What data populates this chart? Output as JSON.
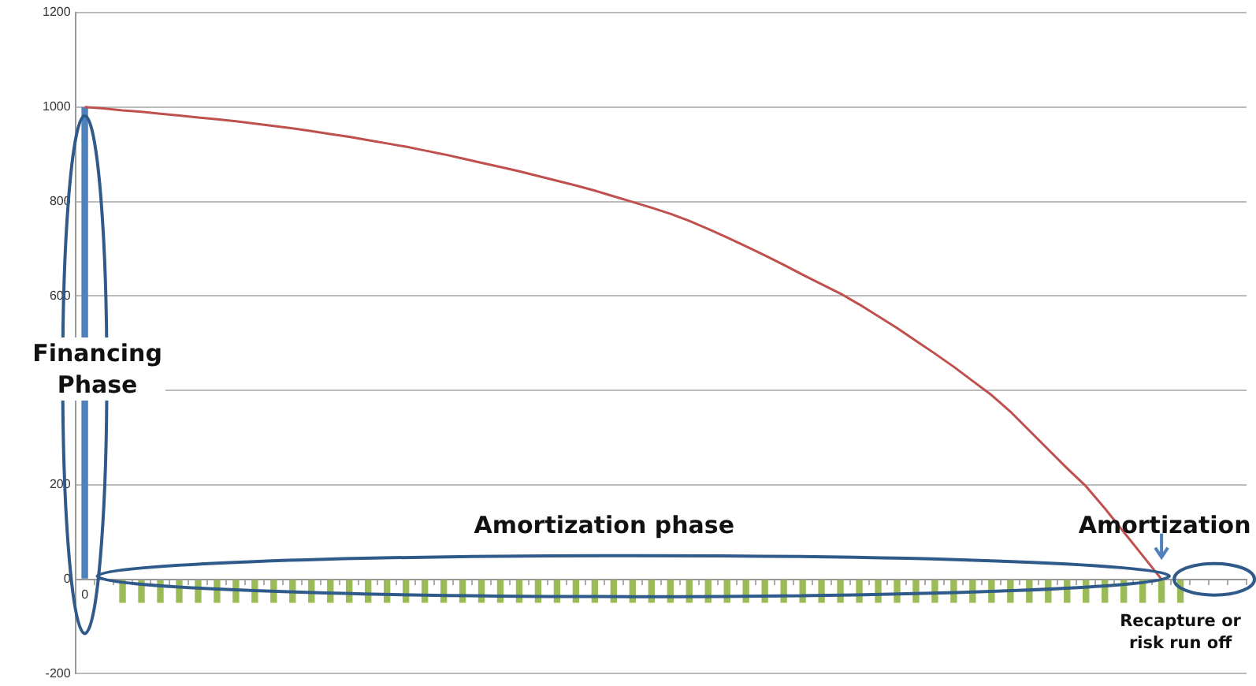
{
  "chart_data": {
    "type": "bar",
    "categories": [
      "0",
      null,
      null,
      null,
      null,
      null,
      null,
      null,
      null,
      null,
      null,
      null,
      null,
      null,
      null,
      null,
      null,
      null,
      null,
      null,
      null,
      null,
      null,
      null,
      null,
      null,
      null,
      null,
      null,
      null,
      null,
      null,
      null,
      null,
      null,
      null,
      null,
      null,
      null,
      null,
      null,
      null,
      null,
      null,
      null,
      null,
      null,
      null,
      null,
      null,
      null,
      null,
      null,
      null,
      null,
      null,
      null,
      null,
      null,
      null,
      null,
      null
    ],
    "series": [
      {
        "color": "#4f81bd",
        "values": [
          1000,
          null,
          null,
          null,
          null,
          null,
          null,
          null,
          null,
          null,
          null,
          null,
          null,
          null,
          null,
          null,
          null,
          null,
          null,
          null,
          null,
          null,
          null,
          null,
          null,
          null,
          null,
          null,
          null,
          null,
          null,
          null,
          null,
          null,
          null,
          null,
          null,
          null,
          null,
          null,
          null,
          null,
          null,
          null,
          null,
          null,
          null,
          null,
          null,
          null,
          null,
          null,
          null,
          null,
          null,
          null,
          null,
          null,
          null,
          null,
          null,
          null
        ]
      },
      {
        "color": "#9bbb59",
        "values": [
          null,
          null,
          -50,
          -50,
          -50,
          -50,
          -50,
          -50,
          -50,
          -50,
          -50,
          -50,
          -50,
          -50,
          -50,
          -50,
          -50,
          -50,
          -50,
          -50,
          -50,
          -50,
          -50,
          -50,
          -50,
          -50,
          -50,
          -50,
          -50,
          -50,
          -50,
          -50,
          -50,
          -50,
          -50,
          -50,
          -50,
          -50,
          -50,
          -50,
          -50,
          -50,
          -50,
          -50,
          -50,
          -50,
          -50,
          -50,
          -50,
          -50,
          -50,
          -50,
          -50,
          -50,
          -50,
          -50,
          -50,
          -50,
          -50,
          null,
          null,
          null
        ]
      },
      {
        "type": "line",
        "color": "#c0504d",
        "values": [
          1000,
          997,
          993,
          990,
          986,
          982,
          978,
          974,
          970,
          965,
          960,
          955,
          949,
          943,
          937,
          930,
          923,
          916,
          908,
          900,
          891,
          882,
          873,
          864,
          854,
          844,
          834,
          823,
          811,
          799,
          787,
          774,
          759,
          742,
          724,
          705,
          686,
          666,
          645,
          625,
          605,
          582,
          557,
          532,
          505,
          478,
          450,
          420,
          390,
          355,
          315,
          275,
          235,
          197,
          150,
          100,
          50,
          0,
          null,
          null,
          null,
          null
        ]
      }
    ],
    "ylim": [
      -200,
      1200
    ],
    "yticks": [
      -200,
      0,
      200,
      {
        "value": 400,
        "label": null
      },
      600,
      800,
      1000,
      1200
    ],
    "grid": "y",
    "legend": false,
    "marker": "none",
    "annotations": [
      "Financing Phase",
      "Amortization phase",
      "Amortization",
      "Recapture or risk run off"
    ]
  }
}
